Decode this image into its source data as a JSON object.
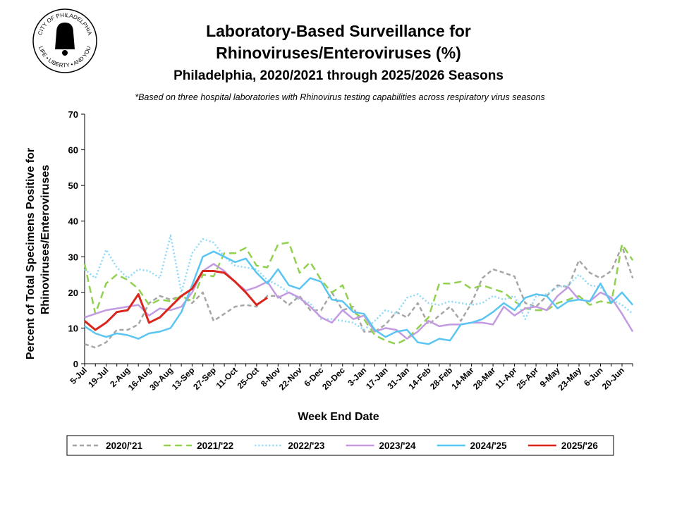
{
  "logo": {
    "top": "CITY OF PHILADELPHIA",
    "bottom": "LIFE • LIBERTY • AND YOU"
  },
  "chart_data": {
    "type": "line",
    "title": [
      "Laboratory-Based Surveillance for",
      "Rhinoviruses/Enteroviruses (%)"
    ],
    "subtitle": "Philadelphia, 2020/2021 through 2025/2026 Seasons",
    "note": "*Based on three hospital laboratories with Rhinovirus testing capabilities across respiratory virus seasons",
    "y_label": [
      "Percent of Total Specimens Positive for",
      "Rhinoviruses/Enteroviruses"
    ],
    "x_label": "Week End Date",
    "categories": [
      "5-Jul",
      null,
      "19-Jul",
      null,
      "2-Aug",
      null,
      "16-Aug",
      null,
      "30-Aug",
      null,
      "13-Sep",
      null,
      "27-Sep",
      null,
      "11-Oct",
      null,
      "25-Oct",
      null,
      "8-Nov",
      null,
      "22-Nov",
      null,
      "6-Dec",
      null,
      "20-Dec",
      null,
      "3-Jan",
      null,
      "17-Jan",
      null,
      "31-Jan",
      null,
      "14-Feb",
      null,
      "28-Feb",
      null,
      "14-Mar",
      null,
      "28-Mar",
      null,
      "11-Apr",
      null,
      "25-Apr",
      null,
      "9-May",
      null,
      "23-May",
      null,
      "6-Jun",
      null,
      "20-Jun",
      null
    ],
    "ylim": [
      0,
      70
    ],
    "yticks": [
      0,
      10,
      20,
      30,
      40,
      50,
      60,
      70
    ],
    "grid": false,
    "legend": "bottom",
    "series": [
      {
        "name": "2020/'21",
        "color": "#a6a6a6",
        "dash": "dash",
        "values": [
          5.5,
          4.5,
          6,
          9.5,
          9.5,
          11,
          17,
          19,
          18,
          19,
          17,
          20,
          12,
          14,
          16,
          16.5,
          16,
          19,
          19,
          16.5,
          19,
          15,
          15,
          20,
          15,
          16,
          9,
          9,
          11,
          14.5,
          13,
          17,
          11,
          13.5,
          16,
          12,
          17,
          24,
          26.5,
          25.5,
          24.5,
          17,
          16,
          19,
          22,
          21.5,
          29,
          25.5,
          24,
          26,
          33,
          24
        ]
      },
      {
        "name": "2021/'22",
        "color": "#92d050",
        "dash": "longdash",
        "values": [
          28,
          14,
          22.5,
          25,
          23.5,
          21,
          16.5,
          18,
          17.5,
          19,
          17.5,
          25,
          24.5,
          31,
          31,
          32.5,
          27.5,
          27,
          33.5,
          34,
          25.5,
          28.5,
          23.5,
          20,
          22,
          14.5,
          12.5,
          8,
          6.5,
          5.5,
          7,
          10,
          13,
          22.5,
          22.5,
          23,
          21,
          22,
          21,
          20,
          17.5,
          15.5,
          15,
          15,
          17,
          18,
          19,
          16.5,
          17.5,
          17,
          33.5,
          29
        ]
      },
      {
        "name": "2022/'23",
        "color": "#8ed8f8",
        "dash": "dot",
        "values": [
          26.5,
          24,
          32,
          27,
          24,
          26.5,
          26,
          24,
          36,
          20,
          31,
          35,
          34,
          30,
          27.5,
          27,
          26.5,
          23.5,
          22,
          20,
          18,
          17,
          12.5,
          12.5,
          12,
          11.5,
          9.5,
          12,
          15,
          14,
          18.5,
          19.5,
          17,
          16.5,
          17.5,
          17,
          16.5,
          17,
          19,
          18,
          19,
          12.5,
          19,
          19.5,
          21.5,
          22,
          25,
          22,
          21.5,
          18,
          16.5,
          14
        ]
      },
      {
        "name": "2023/'24",
        "color": "#c39be1",
        "dash": "solid",
        "values": [
          13,
          14,
          15,
          15.5,
          16,
          16.5,
          13.5,
          15.5,
          15,
          16,
          20,
          26,
          28,
          26,
          23,
          20.5,
          21.5,
          23,
          18.5,
          20,
          18.5,
          16,
          13,
          11.5,
          15,
          12.5,
          13.5,
          9,
          10,
          9.5,
          7,
          9,
          12,
          10.5,
          11,
          11,
          11.5,
          11.5,
          11,
          16,
          13.5,
          15.5,
          16,
          15,
          19,
          21.5,
          18,
          17.5,
          20,
          18.5,
          14,
          9
        ]
      },
      {
        "name": "2024/'25",
        "color": "#5bc5f2",
        "dash": "solid",
        "values": [
          10.5,
          8.5,
          7.5,
          8.5,
          8,
          7,
          8.5,
          9,
          10,
          14.5,
          22,
          30,
          31.5,
          30,
          28.5,
          29.5,
          25.5,
          22.5,
          26.5,
          22,
          21,
          24,
          23,
          18,
          17.5,
          14.5,
          14,
          9.5,
          7.5,
          9,
          9.5,
          6,
          5.5,
          7,
          6.5,
          11,
          11.5,
          12.5,
          14.5,
          17,
          15,
          18.5,
          19.5,
          19,
          15.5,
          17.5,
          18,
          17.5,
          22.5,
          17,
          20,
          16.5
        ]
      },
      {
        "name": "2025/'26",
        "color": "#d9261c",
        "dash": "solid",
        "values": [
          12,
          9.5,
          11.5,
          14.5,
          15,
          19.5,
          11.5,
          13,
          16,
          19,
          21,
          26,
          26,
          25.5,
          23,
          20,
          16.5,
          18.5,
          null,
          null,
          null,
          null,
          null,
          null,
          null,
          null,
          null,
          null,
          null,
          null,
          null,
          null,
          null,
          null,
          null,
          null,
          null,
          null,
          null,
          null,
          null,
          null,
          null,
          null,
          null,
          null,
          null,
          null,
          null,
          null,
          null,
          null
        ]
      }
    ]
  }
}
